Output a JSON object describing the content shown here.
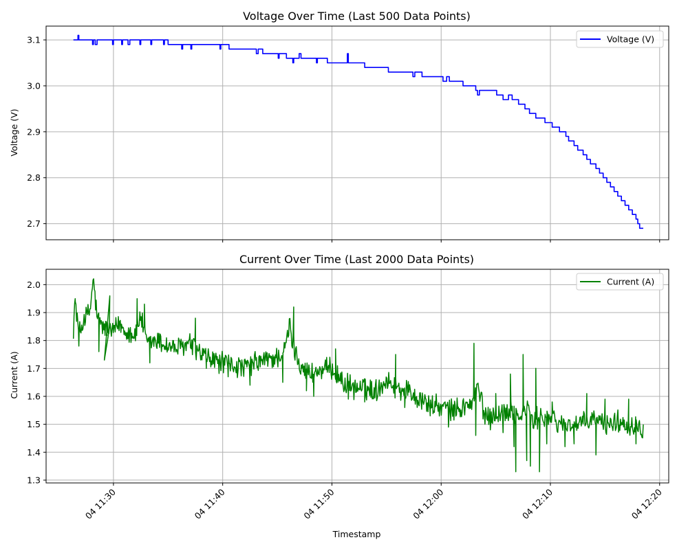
{
  "chart_data": [
    {
      "type": "line",
      "title": "Voltage Over Time (Last 500 Data Points)",
      "xlabel": "",
      "ylabel": "Voltage (V)",
      "ylim": [
        2.665,
        3.13
      ],
      "yticks": [
        2.7,
        2.8,
        2.9,
        3.0,
        3.1
      ],
      "ytick_labels": [
        "2.7",
        "2.8",
        "2.9",
        "3.0",
        "3.1"
      ],
      "xlim": [
        "2024-01-04 11:23:50",
        "2024-01-04 12:20:50"
      ],
      "grid": true,
      "legend_position": "top-right",
      "x_tick_labels_shown": false,
      "series": [
        {
          "name": "Voltage (V)",
          "color": "#0000ff",
          "points": [
            [
              "11:26:20",
              3.1
            ],
            [
              "11:26:40",
              3.1
            ],
            [
              "11:26:45",
              3.11
            ],
            [
              "11:26:50",
              3.1
            ],
            [
              "11:28:00",
              3.1
            ],
            [
              "11:28:05",
              3.09
            ],
            [
              "11:28:10",
              3.1
            ],
            [
              "11:28:20",
              3.09
            ],
            [
              "11:28:30",
              3.1
            ],
            [
              "11:29:50",
              3.1
            ],
            [
              "11:29:55",
              3.09
            ],
            [
              "11:30:00",
              3.1
            ],
            [
              "11:30:40",
              3.1
            ],
            [
              "11:30:45",
              3.09
            ],
            [
              "11:30:50",
              3.1
            ],
            [
              "11:31:20",
              3.09
            ],
            [
              "11:31:30",
              3.1
            ],
            [
              "11:32:20",
              3.1
            ],
            [
              "11:32:25",
              3.09
            ],
            [
              "11:32:30",
              3.1
            ],
            [
              "11:33:20",
              3.1
            ],
            [
              "11:33:25",
              3.09
            ],
            [
              "11:33:30",
              3.1
            ],
            [
              "11:34:30",
              3.1
            ],
            [
              "11:34:35",
              3.09
            ],
            [
              "11:34:40",
              3.1
            ],
            [
              "11:35:00",
              3.09
            ],
            [
              "11:36:10",
              3.09
            ],
            [
              "11:36:15",
              3.08
            ],
            [
              "11:36:20",
              3.09
            ],
            [
              "11:37:00",
              3.09
            ],
            [
              "11:37:05",
              3.08
            ],
            [
              "11:37:10",
              3.09
            ],
            [
              "11:39:40",
              3.09
            ],
            [
              "11:39:45",
              3.08
            ],
            [
              "11:39:50",
              3.09
            ],
            [
              "11:40:30",
              3.09
            ],
            [
              "11:40:35",
              3.08
            ],
            [
              "11:40:50",
              3.08
            ],
            [
              "11:43:00",
              3.08
            ],
            [
              "11:43:05",
              3.07
            ],
            [
              "11:43:15",
              3.08
            ],
            [
              "11:43:40",
              3.07
            ],
            [
              "11:45:00",
              3.07
            ],
            [
              "11:45:05",
              3.06
            ],
            [
              "11:45:10",
              3.07
            ],
            [
              "11:45:50",
              3.06
            ],
            [
              "11:46:20",
              3.06
            ],
            [
              "11:46:25",
              3.05
            ],
            [
              "11:46:30",
              3.06
            ],
            [
              "11:47:00",
              3.07
            ],
            [
              "11:47:10",
              3.06
            ],
            [
              "11:48:30",
              3.06
            ],
            [
              "11:48:35",
              3.05
            ],
            [
              "11:48:40",
              3.06
            ],
            [
              "11:49:30",
              3.06
            ],
            [
              "11:49:35",
              3.05
            ],
            [
              "11:50:00",
              3.05
            ],
            [
              "11:51:20",
              3.05
            ],
            [
              "11:51:25",
              3.07
            ],
            [
              "11:51:30",
              3.05
            ],
            [
              "11:52:40",
              3.05
            ],
            [
              "11:53:00",
              3.04
            ],
            [
              "11:55:00",
              3.04
            ],
            [
              "11:55:10",
              3.03
            ],
            [
              "11:57:20",
              3.03
            ],
            [
              "11:57:25",
              3.02
            ],
            [
              "11:57:35",
              3.03
            ],
            [
              "11:58:10",
              3.03
            ],
            [
              "11:58:15",
              3.02
            ],
            [
              "11:58:30",
              3.02
            ],
            [
              "12:00:00",
              3.02
            ],
            [
              "12:00:10",
              3.01
            ],
            [
              "12:00:30",
              3.02
            ],
            [
              "12:00:45",
              3.01
            ],
            [
              "12:01:30",
              3.01
            ],
            [
              "12:02:00",
              3.0
            ],
            [
              "12:03:00",
              3.0
            ],
            [
              "12:03:10",
              2.99
            ],
            [
              "12:03:20",
              2.98
            ],
            [
              "12:03:30",
              2.99
            ],
            [
              "12:05:00",
              2.99
            ],
            [
              "12:05:05",
              2.98
            ],
            [
              "12:05:30",
              2.98
            ],
            [
              "12:05:40",
              2.97
            ],
            [
              "12:06:10",
              2.98
            ],
            [
              "12:06:30",
              2.97
            ],
            [
              "12:07:00",
              2.97
            ],
            [
              "12:07:05",
              2.96
            ],
            [
              "12:07:30",
              2.96
            ],
            [
              "12:07:40",
              2.95
            ],
            [
              "12:08:00",
              2.95
            ],
            [
              "12:08:05",
              2.94
            ],
            [
              "12:08:30",
              2.94
            ],
            [
              "12:08:40",
              2.93
            ],
            [
              "12:09:20",
              2.93
            ],
            [
              "12:09:30",
              2.92
            ],
            [
              "12:10:00",
              2.92
            ],
            [
              "12:10:10",
              2.91
            ],
            [
              "12:10:40",
              2.91
            ],
            [
              "12:10:50",
              2.9
            ],
            [
              "12:11:20",
              2.9
            ],
            [
              "12:11:25",
              2.89
            ],
            [
              "12:11:40",
              2.88
            ],
            [
              "12:12:10",
              2.87
            ],
            [
              "12:12:30",
              2.86
            ],
            [
              "12:13:00",
              2.85
            ],
            [
              "12:13:20",
              2.84
            ],
            [
              "12:13:40",
              2.83
            ],
            [
              "12:14:10",
              2.82
            ],
            [
              "12:14:30",
              2.81
            ],
            [
              "12:14:50",
              2.8
            ],
            [
              "12:15:10",
              2.79
            ],
            [
              "12:15:30",
              2.78
            ],
            [
              "12:15:50",
              2.77
            ],
            [
              "12:16:10",
              2.76
            ],
            [
              "12:16:30",
              2.75
            ],
            [
              "12:16:50",
              2.74
            ],
            [
              "12:17:10",
              2.73
            ],
            [
              "12:17:30",
              2.72
            ],
            [
              "12:17:50",
              2.71
            ],
            [
              "12:18:00",
              2.7
            ],
            [
              "12:18:10",
              2.69
            ],
            [
              "12:18:30",
              2.69
            ]
          ]
        }
      ]
    },
    {
      "type": "line",
      "title": "Current Over Time (Last 2000 Data Points)",
      "xlabel": "Timestamp",
      "ylabel": "Current (A)",
      "ylim": [
        1.29,
        2.055
      ],
      "yticks": [
        1.3,
        1.4,
        1.5,
        1.6,
        1.7,
        1.8,
        1.9,
        2.0
      ],
      "ytick_labels": [
        "1.3",
        "1.4",
        "1.5",
        "1.6",
        "1.7",
        "1.8",
        "1.9",
        "2.0"
      ],
      "xlim": [
        "2024-01-04 11:23:50",
        "2024-01-04 12:20:50"
      ],
      "xticks": [
        "11:30",
        "11:40",
        "11:50",
        "12:00",
        "12:10",
        "12:20"
      ],
      "xtick_labels": [
        "04 11:30",
        "04 11:40",
        "04 11:50",
        "04 12:00",
        "04 12:10",
        "04 12:20"
      ],
      "grid": true,
      "legend_position": "top-right",
      "series": [
        {
          "name": "Current (A)",
          "color": "#008000",
          "noise_amplitude": 0.035,
          "points": [
            [
              "11:26:20",
              1.85
            ],
            [
              "11:26:30",
              1.94
            ],
            [
              "11:26:50",
              1.82
            ],
            [
              "11:27:20",
              1.88
            ],
            [
              "11:27:50",
              1.9
            ],
            [
              "11:28:00",
              1.96
            ],
            [
              "11:28:10",
              2.02
            ],
            [
              "11:28:30",
              1.88
            ],
            [
              "11:29:00",
              1.85
            ],
            [
              "11:30:00",
              1.83
            ],
            [
              "11:30:30",
              1.86
            ],
            [
              "11:31:00",
              1.84
            ],
            [
              "11:32:00",
              1.82
            ],
            [
              "11:32:30",
              1.89
            ],
            [
              "11:33:00",
              1.79
            ],
            [
              "11:34:00",
              1.8
            ],
            [
              "11:35:00",
              1.78
            ],
            [
              "11:36:00",
              1.77
            ],
            [
              "11:37:00",
              1.79
            ],
            [
              "11:38:00",
              1.75
            ],
            [
              "11:39:00",
              1.73
            ],
            [
              "11:40:00",
              1.72
            ],
            [
              "11:41:00",
              1.71
            ],
            [
              "11:42:00",
              1.7
            ],
            [
              "11:43:00",
              1.72
            ],
            [
              "11:44:00",
              1.73
            ],
            [
              "11:45:00",
              1.74
            ],
            [
              "11:45:40",
              1.76
            ],
            [
              "11:46:10",
              1.86
            ],
            [
              "11:46:20",
              1.8
            ],
            [
              "11:47:00",
              1.72
            ],
            [
              "11:48:00",
              1.68
            ],
            [
              "11:49:00",
              1.69
            ],
            [
              "11:50:00",
              1.7
            ],
            [
              "11:51:00",
              1.65
            ],
            [
              "11:52:00",
              1.63
            ],
            [
              "11:53:00",
              1.63
            ],
            [
              "11:54:00",
              1.62
            ],
            [
              "11:55:00",
              1.66
            ],
            [
              "11:56:00",
              1.63
            ],
            [
              "11:57:00",
              1.62
            ],
            [
              "11:58:00",
              1.59
            ],
            [
              "11:59:00",
              1.57
            ],
            [
              "12:00:00",
              1.56
            ],
            [
              "12:01:00",
              1.55
            ],
            [
              "12:02:00",
              1.56
            ],
            [
              "12:03:00",
              1.58
            ],
            [
              "12:03:20",
              1.64
            ],
            [
              "12:04:00",
              1.53
            ],
            [
              "12:05:00",
              1.54
            ],
            [
              "12:06:00",
              1.54
            ],
            [
              "12:06:30",
              1.56
            ],
            [
              "12:07:00",
              1.52
            ],
            [
              "12:08:00",
              1.56
            ],
            [
              "12:08:20",
              1.5
            ],
            [
              "12:09:00",
              1.53
            ],
            [
              "12:10:00",
              1.52
            ],
            [
              "12:11:00",
              1.5
            ],
            [
              "12:12:00",
              1.5
            ],
            [
              "12:13:00",
              1.5
            ],
            [
              "12:14:00",
              1.52
            ],
            [
              "12:15:00",
              1.5
            ],
            [
              "12:16:00",
              1.51
            ],
            [
              "12:17:00",
              1.5
            ],
            [
              "12:18:00",
              1.5
            ],
            [
              "12:18:30",
              1.48
            ]
          ],
          "spikes": [
            [
              "11:26:30",
              1.95
            ],
            [
              "11:26:50",
              1.78
            ],
            [
              "11:28:10",
              2.02
            ],
            [
              "11:28:40",
              1.76
            ],
            [
              "11:29:40",
              1.96
            ],
            [
              "11:29:10",
              1.73
            ],
            [
              "11:32:10",
              1.95
            ],
            [
              "11:32:50",
              1.93
            ],
            [
              "11:33:20",
              1.72
            ],
            [
              "11:37:30",
              1.88
            ],
            [
              "11:38:30",
              1.7
            ],
            [
              "11:40:30",
              1.67
            ],
            [
              "11:42:30",
              1.64
            ],
            [
              "11:45:30",
              1.65
            ],
            [
              "11:46:30",
              1.92
            ],
            [
              "11:47:40",
              1.62
            ],
            [
              "11:48:20",
              1.6
            ],
            [
              "11:50:20",
              1.77
            ],
            [
              "11:51:30",
              1.59
            ],
            [
              "11:53:00",
              1.58
            ],
            [
              "11:55:50",
              1.75
            ],
            [
              "11:56:40",
              1.56
            ],
            [
              "11:59:00",
              1.53
            ],
            [
              "12:00:40",
              1.49
            ],
            [
              "12:03:00",
              1.79
            ],
            [
              "12:03:10",
              1.46
            ],
            [
              "12:04:30",
              1.48
            ],
            [
              "12:05:00",
              1.61
            ],
            [
              "12:05:40",
              1.47
            ],
            [
              "12:06:20",
              1.68
            ],
            [
              "12:06:40",
              1.42
            ],
            [
              "12:06:50",
              1.33
            ],
            [
              "12:07:30",
              1.75
            ],
            [
              "12:07:50",
              1.37
            ],
            [
              "12:08:10",
              1.35
            ],
            [
              "12:08:40",
              1.7
            ],
            [
              "12:09:00",
              1.33
            ],
            [
              "12:09:40",
              1.43
            ],
            [
              "12:10:10",
              1.58
            ],
            [
              "12:11:20",
              1.42
            ],
            [
              "12:12:10",
              1.43
            ],
            [
              "12:13:20",
              1.61
            ],
            [
              "12:14:10",
              1.39
            ],
            [
              "12:15:00",
              1.59
            ],
            [
              "12:17:10",
              1.59
            ],
            [
              "12:17:50",
              1.43
            ]
          ]
        }
      ]
    }
  ]
}
